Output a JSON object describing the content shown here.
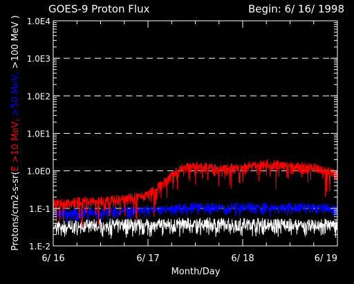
{
  "chart_data": {
    "type": "line",
    "title": "GOES-9 Proton Flux",
    "begin_label": "Begin: 6/ 16/ 1998",
    "xlabel": "Month/Day",
    "ylabel_parts": [
      {
        "text": "Protons/cm2-s-sr(",
        "color": "#ffffff"
      },
      {
        "text": "E >10 MeV, ",
        "color": "#ff0000"
      },
      {
        "text": ">50 MeV, ",
        "color": "#0000ff"
      },
      {
        "text": ">100 MeV )",
        "color": "#ffffff"
      }
    ],
    "y_scale": "log",
    "ylim": [
      0.01,
      10000
    ],
    "y_ticks": [
      {
        "value": 0.01,
        "label": "1.E-2"
      },
      {
        "value": 0.1,
        "label": "1.E-1"
      },
      {
        "value": 1,
        "label": "1.0E0"
      },
      {
        "value": 10,
        "label": "1.0E1"
      },
      {
        "value": 100,
        "label": "1.0E2"
      },
      {
        "value": 1000,
        "label": "1.0E3"
      },
      {
        "value": 10000,
        "label": "1.0E4"
      }
    ],
    "grid": "dashed horizontal at decades",
    "xlim": [
      "1998-06-16",
      "1998-06-19"
    ],
    "x_ticks": [
      {
        "value": 0,
        "label": "6/ 16"
      },
      {
        "value": 1,
        "label": "6/ 17"
      },
      {
        "value": 2,
        "label": "6/ 18"
      },
      {
        "value": 3,
        "label": "6/ 19"
      }
    ],
    "series": [
      {
        "name": ">10 MeV",
        "color": "#ff0000",
        "x": [
          "1998-06-16T00:00",
          "1998-06-16T06:00",
          "1998-06-16T12:00",
          "1998-06-16T18:00",
          "1998-06-17T00:00",
          "1998-06-17T03:00",
          "1998-06-17T06:00",
          "1998-06-17T09:00",
          "1998-06-17T12:00",
          "1998-06-17T18:00",
          "1998-06-18T00:00",
          "1998-06-18T06:00",
          "1998-06-18T12:00",
          "1998-06-18T18:00",
          "1998-06-19T00:00"
        ],
        "values": [
          0.15,
          0.17,
          0.18,
          0.2,
          0.28,
          0.45,
          0.85,
          1.4,
          1.5,
          1.3,
          1.4,
          1.8,
          1.5,
          1.4,
          0.9
        ]
      },
      {
        "name": ">50 MeV",
        "color": "#0000ff",
        "x": [
          "1998-06-16T00:00",
          "1998-06-16T12:00",
          "1998-06-17T00:00",
          "1998-06-17T12:00",
          "1998-06-18T00:00",
          "1998-06-18T12:00",
          "1998-06-19T00:00"
        ],
        "values": [
          0.08,
          0.09,
          0.1,
          0.12,
          0.12,
          0.12,
          0.11
        ]
      },
      {
        "name": ">100 MeV",
        "color": "#ffffff",
        "x": [
          "1998-06-16T00:00",
          "1998-06-16T12:00",
          "1998-06-17T00:00",
          "1998-06-17T12:00",
          "1998-06-18T00:00",
          "1998-06-18T12:00",
          "1998-06-19T00:00"
        ],
        "values": [
          0.035,
          0.04,
          0.04,
          0.042,
          0.042,
          0.04,
          0.04
        ]
      }
    ]
  }
}
